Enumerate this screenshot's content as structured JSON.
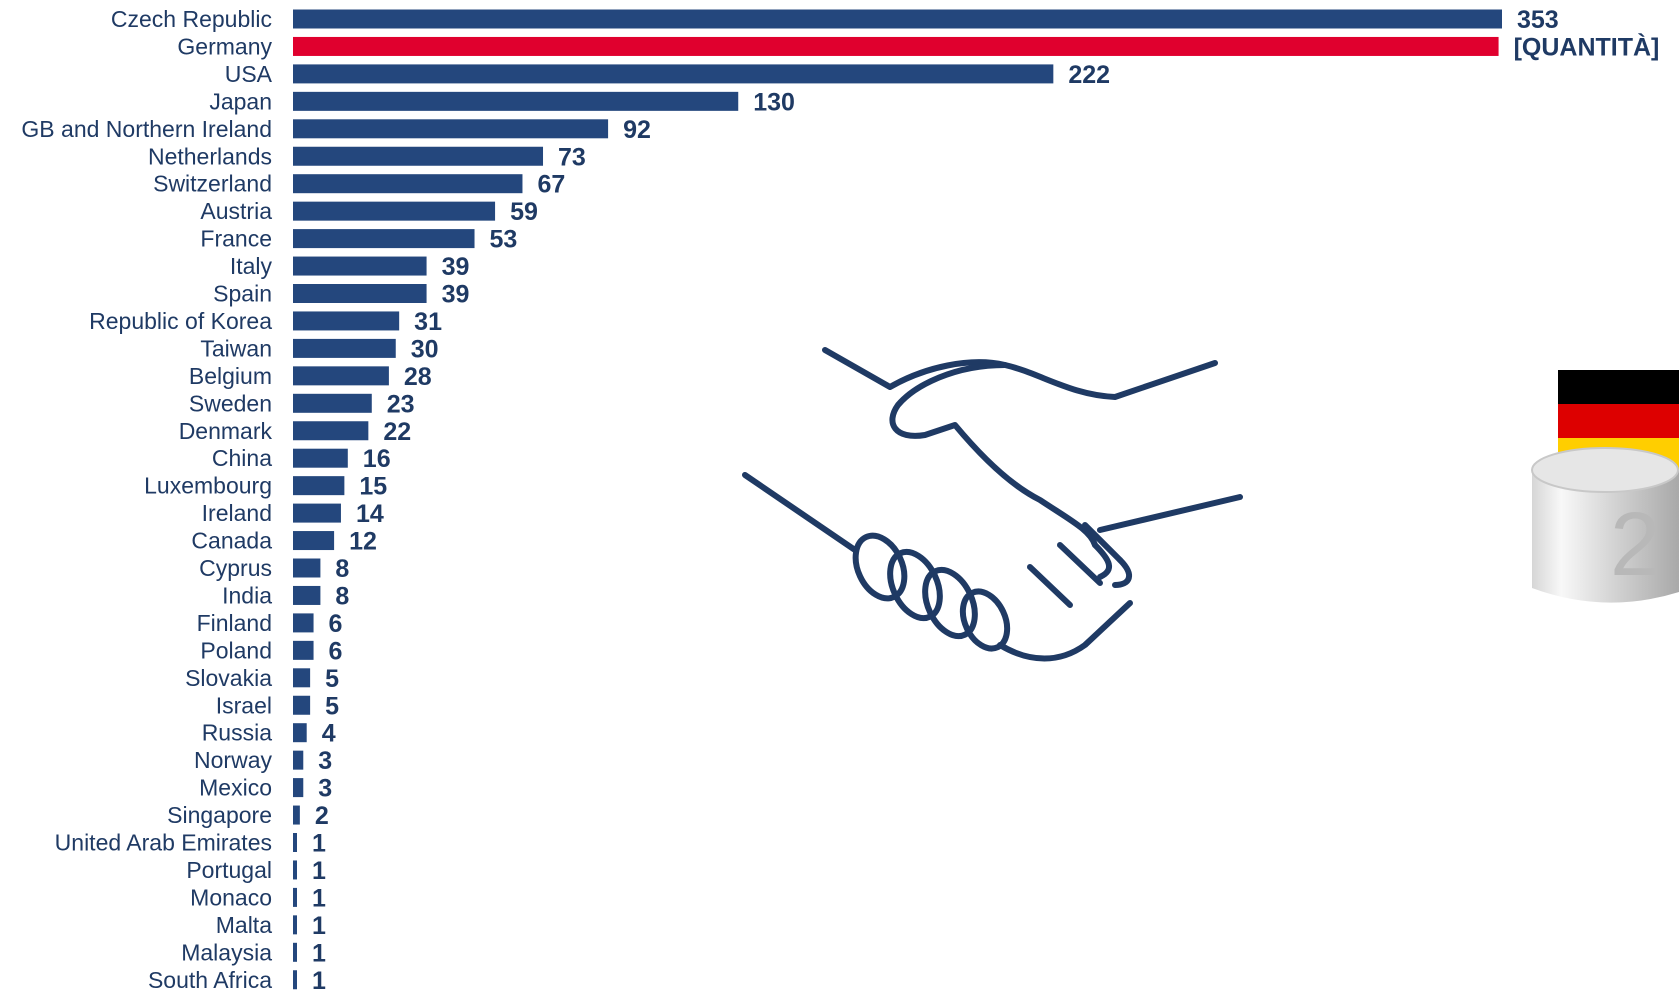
{
  "chart_data": {
    "type": "bar",
    "orientation": "horizontal",
    "title": "",
    "xlabel": "",
    "ylabel": "",
    "categories": [
      "Czech Republic",
      "Germany",
      "USA",
      "Japan",
      "GB and Northern Ireland",
      "Netherlands",
      "Switzerland",
      "Austria",
      "France",
      "Italy",
      "Spain",
      "Republic of Korea",
      "Taiwan",
      "Belgium",
      "Sweden",
      "Denmark",
      "China",
      "Luxembourg",
      "Ireland",
      "Canada",
      "Cyprus",
      "India",
      "Finland",
      "Poland",
      "Slovakia",
      "Israel",
      "Russia",
      "Norway",
      "Mexico",
      "Singapore",
      "United Arab Emirates",
      "Portugal",
      "Monaco",
      "Malta",
      "Malaysia",
      "South Africa"
    ],
    "values": [
      353,
      352,
      222,
      130,
      92,
      73,
      67,
      59,
      53,
      39,
      39,
      31,
      30,
      28,
      23,
      22,
      16,
      15,
      14,
      12,
      8,
      8,
      6,
      6,
      5,
      5,
      4,
      3,
      3,
      2,
      1,
      1,
      1,
      1,
      1,
      1
    ],
    "value_labels": [
      "353",
      "[QUANTITÀ]",
      "222",
      "130",
      "92",
      "73",
      "67",
      "59",
      "53",
      "39",
      "39",
      "31",
      "30",
      "28",
      "23",
      "22",
      "16",
      "15",
      "14",
      "12",
      "8",
      "8",
      "6",
      "6",
      "5",
      "5",
      "4",
      "3",
      "3",
      "2",
      "1",
      "1",
      "1",
      "1",
      "1",
      "1"
    ],
    "highlight_index": 1,
    "xlim": [
      0,
      353
    ],
    "grid": false,
    "legend": "none",
    "colors": {
      "bar": "#24477d",
      "highlight": "#e0002e",
      "text": "#1f3a64"
    }
  },
  "decor": {
    "center_icon": "handshake-icon",
    "right_graphic": "germany-flag-podium",
    "podium_number": "2",
    "flag_colors": [
      "#000000",
      "#dd0000",
      "#ffce00"
    ]
  }
}
